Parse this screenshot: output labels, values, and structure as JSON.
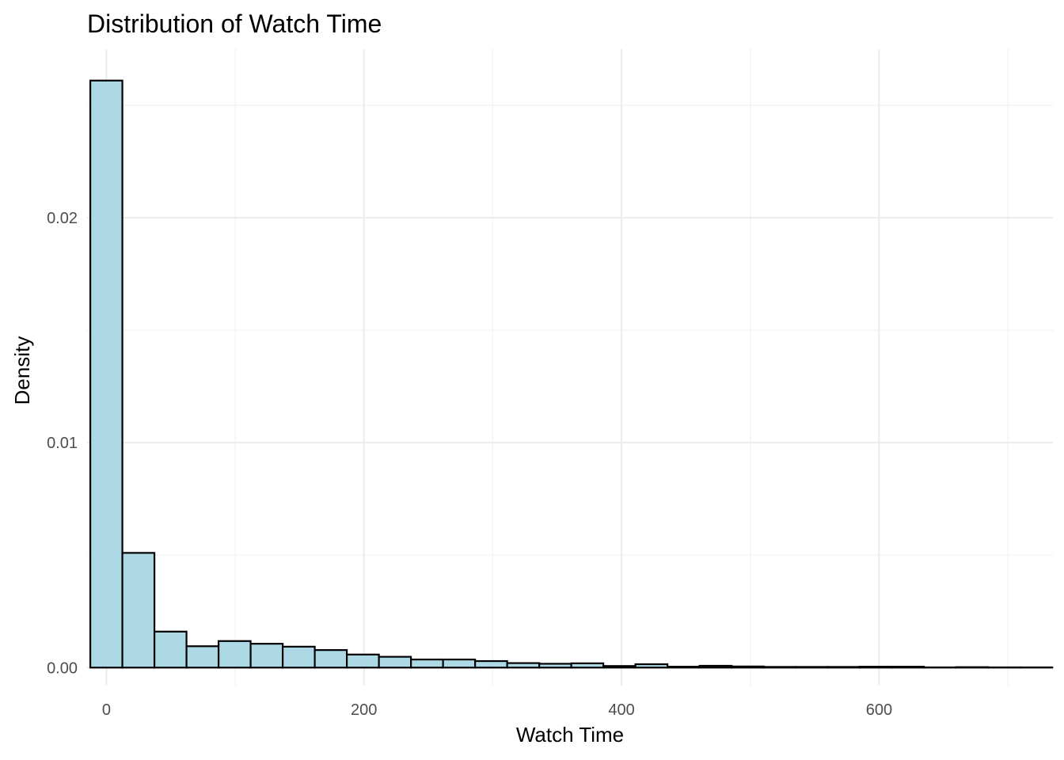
{
  "chart_data": {
    "type": "bar",
    "title": "Distribution of Watch Time",
    "xlabel": "Watch Time",
    "ylabel": "Density",
    "xlim": [
      -15,
      735
    ],
    "ylim": [
      -0.0008,
      0.0275
    ],
    "x_ticks": [
      0,
      200,
      400,
      600
    ],
    "x_tick_labels": [
      "0",
      "200",
      "400",
      "600"
    ],
    "y_ticks": [
      0.0,
      0.01,
      0.02
    ],
    "y_tick_labels": [
      "0.00",
      "0.01",
      "0.02"
    ],
    "grid": true,
    "fill_color": "#add8e6",
    "outline_color": "#000000",
    "bins": {
      "start": -12.5,
      "width": 24.9,
      "values": [
        0.0261,
        0.0051,
        0.0016,
        0.00095,
        0.00118,
        0.00106,
        0.00093,
        0.00078,
        0.00058,
        0.00048,
        0.00036,
        0.00036,
        0.00029,
        0.0002,
        0.00017,
        0.00019,
        7e-05,
        0.00015,
        4e-05,
        8e-05,
        5e-05,
        3e-05,
        3e-05,
        3e-05,
        4e-05,
        4e-05,
        1e-05,
        2e-05,
        1e-05,
        1e-05
      ]
    }
  }
}
